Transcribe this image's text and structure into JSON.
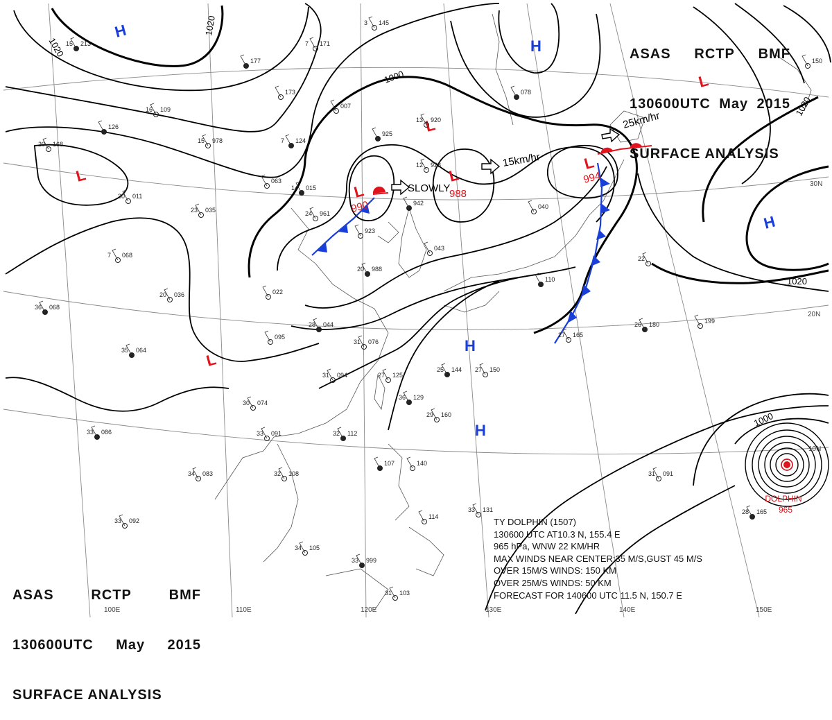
{
  "header": {
    "line1": [
      "ASAS",
      "RCTP",
      "BMF"
    ],
    "line2": [
      "130600UTC",
      "May",
      "2015"
    ],
    "line3": "SURFACE ANALYSIS"
  },
  "colors": {
    "high": "#1a3fd9",
    "low": "#e0141c",
    "front_cold": "#1a3fd9",
    "front_warm": "#e0141c",
    "isobar": "#000000",
    "grid": "#888888",
    "coast": "#444444"
  },
  "isobar_labels": [
    "1020",
    "1020",
    "1000",
    "1000",
    "1020",
    "1020"
  ],
  "lat_labels": [
    "30N",
    "20N",
    "10N"
  ],
  "lon_labels": [
    "110E",
    "120E",
    "130E",
    "140E",
    "150E",
    "100E"
  ],
  "pressure_systems": [
    {
      "type": "H",
      "symbol": "H"
    },
    {
      "type": "H",
      "symbol": "H"
    },
    {
      "type": "H",
      "symbol": "H"
    },
    {
      "type": "H",
      "symbol": "H"
    },
    {
      "type": "H",
      "symbol": "H"
    },
    {
      "type": "L",
      "symbol": "L"
    },
    {
      "type": "L",
      "symbol": "L"
    },
    {
      "type": "L",
      "symbol": "L",
      "pressure": "990"
    },
    {
      "type": "L",
      "symbol": "L",
      "pressure": "988"
    },
    {
      "type": "L",
      "symbol": "L",
      "pressure": "994"
    },
    {
      "type": "L",
      "symbol": "L"
    },
    {
      "type": "L",
      "symbol": "L"
    }
  ],
  "movements": [
    "SLOWLY",
    "15km/hr",
    "25km/hr"
  ],
  "typhoon": {
    "name": "DOLPHIN",
    "pressure": "965",
    "info": [
      "TY DOLPHIN (1507)",
      "130600 UTC AT10.3 N, 155.4 E",
      "965 hPa, WNW 22 KM/HR",
      "MAX WINDS NEAR CENTER:35 M/S,GUST 45 M/S",
      "OVER 15M/S WINDS: 150 KM",
      "OVER 25M/S WINDS: 50 KM",
      "FORECAST FOR 140600 UTC 11.5 N, 150.7 E"
    ]
  },
  "stations": [
    {
      "t": "15",
      "p": "213"
    },
    {
      "t": "3",
      "p": "145"
    },
    {
      "t": "7",
      "p": "171"
    },
    {
      "t": "",
      "p": "177"
    },
    {
      "t": "",
      "p": "173"
    },
    {
      "t": "16",
      "p": "109"
    },
    {
      "t": "",
      "p": "126"
    },
    {
      "t": "20",
      "p": "168"
    },
    {
      "t": "15",
      "p": "978"
    },
    {
      "t": "7",
      "p": "124"
    },
    {
      "t": "",
      "p": "063"
    },
    {
      "t": "",
      "p": "007"
    },
    {
      "t": "",
      "p": "925"
    },
    {
      "t": "13",
      "p": "920"
    },
    {
      "t": "12",
      "p": "928"
    },
    {
      "t": "",
      "p": "942"
    },
    {
      "t": "23",
      "p": "035"
    },
    {
      "t": "30",
      "p": "011"
    },
    {
      "t": "14",
      "p": "015"
    },
    {
      "t": "",
      "p": "923"
    },
    {
      "t": "24",
      "p": "961"
    },
    {
      "t": "20",
      "p": "988"
    },
    {
      "t": "",
      "p": "043"
    },
    {
      "t": "7",
      "p": "068"
    },
    {
      "t": "36",
      "p": "068"
    },
    {
      "t": "20",
      "p": "036"
    },
    {
      "t": "",
      "p": "022"
    },
    {
      "t": "28",
      "p": "044"
    },
    {
      "t": "31",
      "p": "076"
    },
    {
      "t": "",
      "p": "095"
    },
    {
      "t": "35",
      "p": "064"
    },
    {
      "t": "31",
      "p": "094"
    },
    {
      "t": "27",
      "p": "125"
    },
    {
      "t": "25",
      "p": "144"
    },
    {
      "t": "27",
      "p": "150"
    },
    {
      "t": "29",
      "p": "160"
    },
    {
      "t": "36",
      "p": "129"
    },
    {
      "t": "30",
      "p": "074"
    },
    {
      "t": "33",
      "p": "091"
    },
    {
      "t": "32",
      "p": "112"
    },
    {
      "t": "32",
      "p": "108"
    },
    {
      "t": "",
      "p": "140"
    },
    {
      "t": "",
      "p": "107"
    },
    {
      "t": "33",
      "p": "131"
    },
    {
      "t": "34",
      "p": "105"
    },
    {
      "t": "33",
      "p": "999"
    },
    {
      "t": "31",
      "p": "103"
    },
    {
      "t": "",
      "p": "114"
    },
    {
      "t": "33",
      "p": "086"
    },
    {
      "t": "34",
      "p": "083"
    },
    {
      "t": "33",
      "p": "092"
    },
    {
      "t": "",
      "p": "110"
    },
    {
      "t": "22",
      "p": ""
    },
    {
      "t": "",
      "p": "199"
    },
    {
      "t": "26",
      "p": "180"
    },
    {
      "t": "27",
      "p": "165"
    },
    {
      "t": "31",
      "p": "091"
    },
    {
      "t": "28",
      "p": "165"
    },
    {
      "t": "",
      "p": "040"
    },
    {
      "t": "",
      "p": "150"
    },
    {
      "t": "",
      "p": "078"
    }
  ]
}
